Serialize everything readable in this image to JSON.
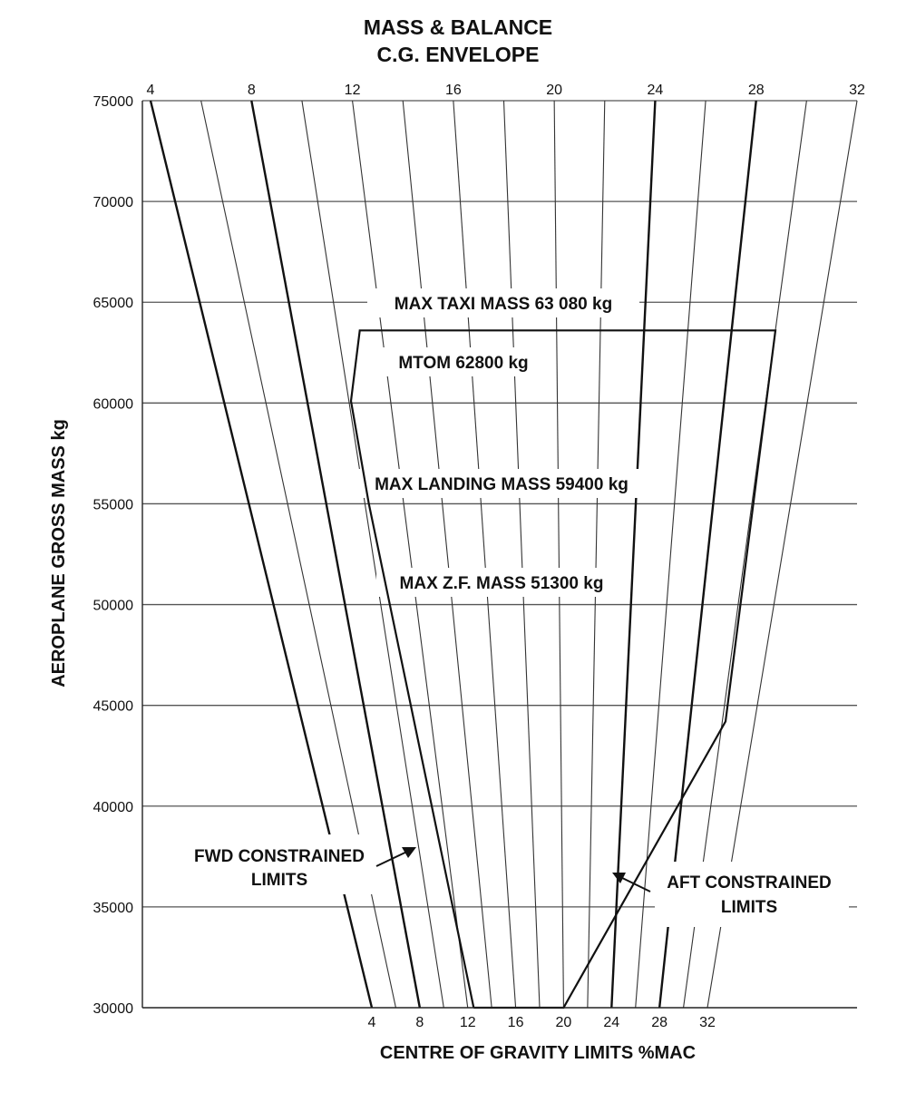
{
  "chart_data": {
    "type": "line",
    "title": "MASS & BALANCE",
    "subtitle": "C.G. ENVELOPE",
    "xlabel": "CENTRE OF GRAVITY LIMITS %MAC",
    "ylabel": "AEROPLANE GROSS MASS kg",
    "ylim": [
      30000,
      75000
    ],
    "y_ticks": [
      "75000",
      "70000",
      "65000",
      "60000",
      "55000",
      "50000",
      "45000",
      "40000",
      "35000",
      "30000"
    ],
    "top_ticks": [
      "4",
      "8",
      "12",
      "16",
      "20",
      "24",
      "28",
      "32"
    ],
    "bottom_ticks": [
      "4",
      "8",
      "12",
      "16",
      "20",
      "24",
      "28",
      "32"
    ],
    "grid": true,
    "cg_lines_percent_mac": [
      4,
      6,
      8,
      10,
      12,
      14,
      16,
      18,
      20,
      22,
      24,
      26,
      28,
      30,
      32
    ],
    "highlighted_cg_lines_percent_mac": [
      4,
      8,
      24,
      28
    ],
    "envelope": {
      "name": "C.G. envelope",
      "points": [
        {
          "cg": 12.5,
          "mass": 30000
        },
        {
          "cg": 20,
          "mass": 30000
        },
        {
          "cg": 30.2,
          "mass": 44200
        },
        {
          "cg": 30.0,
          "mass": 63600
        },
        {
          "cg": 11.0,
          "mass": 63600
        },
        {
          "cg": 10.1,
          "mass": 60100
        },
        {
          "cg": 10.2,
          "mass": 55000
        },
        {
          "cg": 12.5,
          "mass": 30000
        }
      ]
    },
    "annotations": [
      {
        "text": "MAX TAXI MASS 63 080 kg",
        "mass": 65000
      },
      {
        "text": "MTOM 62800 kg",
        "mass": 62000
      },
      {
        "text": "MAX LANDING MASS 59400 kg",
        "mass": 55900
      },
      {
        "text": "MAX Z.F. MASS 51300 kg",
        "mass": 51000
      }
    ],
    "callouts": [
      {
        "lines": [
          "FWD CONSTRAINED",
          "LIMITS"
        ]
      },
      {
        "lines": [
          "AFT CONSTRAINED",
          "LIMITS"
        ]
      }
    ]
  }
}
